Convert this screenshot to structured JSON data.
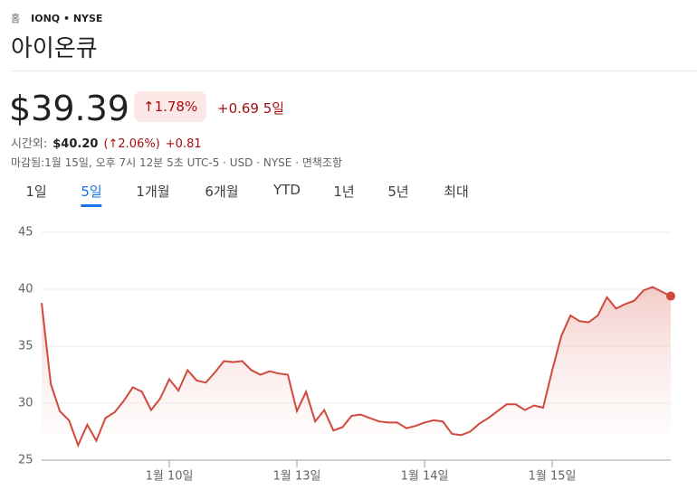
{
  "header": {
    "breadcrumb": [
      "홈",
      "IONQ • NYSE"
    ],
    "title": "아이온큐"
  },
  "price": {
    "value": "$39.39",
    "change_percent": "↑1.78%",
    "change": "+0.69",
    "period": "5일"
  },
  "after_hours": {
    "label": "시간외:",
    "price": "$40.20",
    "change_percent": "(↑2.06%)",
    "change": "+0.81"
  },
  "status": "마감됨:1월 15일, 오후 7시 12분 5초 UTC-5 · USD · NYSE · 면책조항",
  "tabs": {
    "items": [
      "1일",
      "5일",
      "1개월",
      "6개월",
      "YTD",
      "1년",
      "5년",
      "최대"
    ],
    "selected": 1
  },
  "chart_data": {
    "type": "line",
    "color": "#d0493c",
    "values": [
      38.8,
      31.7,
      29.3,
      28.5,
      26.3,
      28.1,
      26.7,
      28.7,
      29.2,
      30.2,
      31.4,
      31.0,
      29.4,
      30.4,
      32.1,
      31.1,
      32.9,
      32.0,
      31.8,
      32.7,
      33.7,
      33.6,
      33.7,
      32.9,
      32.5,
      32.8,
      32.6,
      32.5,
      29.3,
      31.0,
      28.4,
      29.4,
      27.6,
      27.9,
      28.9,
      29.0,
      28.7,
      28.4,
      28.3,
      28.3,
      27.8,
      28.0,
      28.3,
      28.5,
      28.4,
      27.3,
      27.2,
      27.5,
      28.2,
      28.7,
      29.3,
      29.9,
      29.9,
      29.4,
      29.8,
      29.6,
      32.9,
      35.9,
      37.7,
      37.2,
      37.1,
      37.7,
      39.3,
      38.3,
      38.7,
      39.0,
      39.9,
      40.2,
      39.8,
      39.4
    ],
    "xlim": [
      0,
      69
    ],
    "xticks": [
      {
        "value": 14,
        "label": "1월 10일"
      },
      {
        "value": 28,
        "label": "1월 13일"
      },
      {
        "value": 42,
        "label": "1월 14일"
      },
      {
        "value": 56,
        "label": "1월 15일"
      }
    ],
    "ylim": [
      25,
      45
    ],
    "yticks": [
      45,
      40,
      35,
      30,
      25
    ],
    "grid": true
  }
}
